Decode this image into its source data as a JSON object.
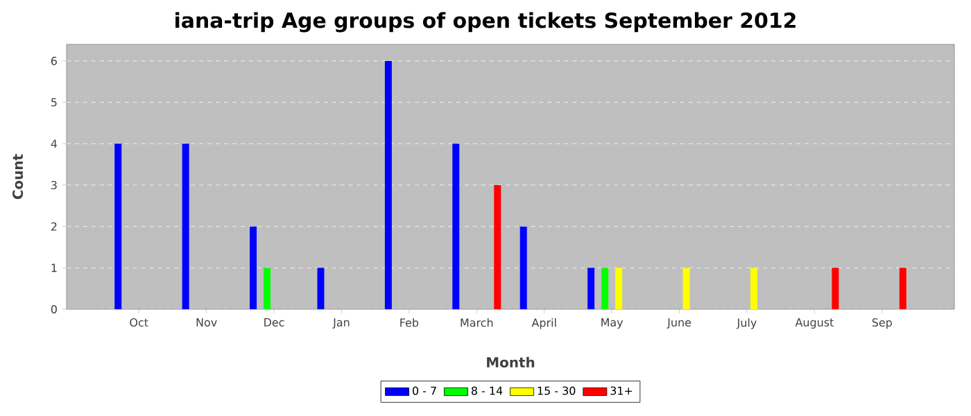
{
  "chart_data": {
    "type": "bar",
    "title": "iana-trip Age groups of open tickets September 2012",
    "xlabel": "Month",
    "ylabel": "Count",
    "categories": [
      "Oct",
      "Nov",
      "Dec",
      "Jan",
      "Feb",
      "March",
      "April",
      "May",
      "June",
      "July",
      "August",
      "Sep"
    ],
    "series": [
      {
        "name": "0 - 7",
        "color": "#0000ff",
        "values": [
          4,
          4,
          2,
          1,
          6,
          4,
          2,
          1,
          null,
          null,
          null,
          null
        ]
      },
      {
        "name": "8 - 14",
        "color": "#00ff00",
        "values": [
          null,
          null,
          1,
          null,
          null,
          null,
          null,
          1,
          null,
          null,
          null,
          null
        ]
      },
      {
        "name": "15 - 30",
        "color": "#ffff00",
        "values": [
          null,
          null,
          null,
          null,
          null,
          null,
          null,
          1,
          1,
          1,
          null,
          null
        ]
      },
      {
        "name": "31+",
        "color": "#ff0000",
        "values": [
          null,
          null,
          null,
          null,
          null,
          3,
          null,
          null,
          null,
          null,
          1,
          1
        ]
      }
    ],
    "ylim": [
      0,
      6.4
    ],
    "yticks": [
      0,
      1,
      2,
      3,
      4,
      5,
      6
    ],
    "grid": "y",
    "legend": "bottom"
  }
}
